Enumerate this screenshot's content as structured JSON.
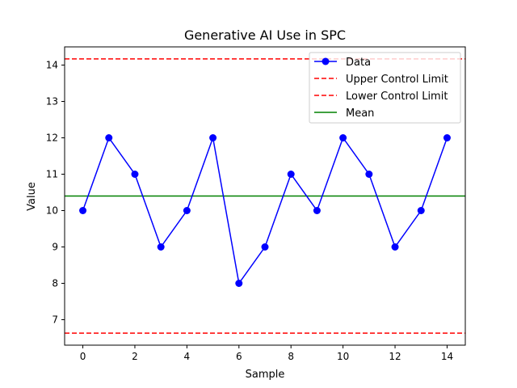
{
  "chart_data": {
    "type": "line",
    "title": "Generative AI Use in SPC",
    "xlabel": "Sample",
    "ylabel": "Value",
    "xlim": [
      -0.7,
      14.7
    ],
    "ylim": [
      6.3,
      14.5
    ],
    "x_ticks": [
      0,
      2,
      4,
      6,
      8,
      10,
      12,
      14
    ],
    "y_ticks": [
      7,
      8,
      9,
      10,
      11,
      12,
      13,
      14
    ],
    "grid": false,
    "legend_position": "top-right",
    "series": [
      {
        "name": "Data",
        "color": "#0000ff",
        "marker": "circle",
        "x": [
          0,
          1,
          2,
          3,
          4,
          5,
          6,
          7,
          8,
          9,
          10,
          11,
          12,
          13,
          14
        ],
        "values": [
          10,
          12,
          11,
          9,
          10,
          12,
          8,
          9,
          11,
          10,
          12,
          11,
          9,
          10,
          12
        ]
      }
    ],
    "reference_lines": [
      {
        "name": "Upper Control Limit",
        "y": 14.17,
        "color": "#ff0000",
        "style": "dashed"
      },
      {
        "name": "Lower Control Limit",
        "y": 6.63,
        "color": "#ff0000",
        "style": "dashed"
      },
      {
        "name": "Mean",
        "y": 10.4,
        "color": "#008000",
        "style": "solid"
      }
    ]
  }
}
